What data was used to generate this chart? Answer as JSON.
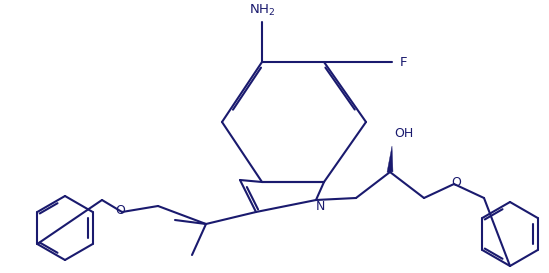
{
  "bg": "#ffffff",
  "lc": "#1a1a6e",
  "lw": 1.5,
  "fs": 9.0,
  "figsize": [
    5.49,
    2.73
  ],
  "dpi": 100,
  "xlim": [
    0,
    549
  ],
  "ylim": [
    0,
    273
  ]
}
